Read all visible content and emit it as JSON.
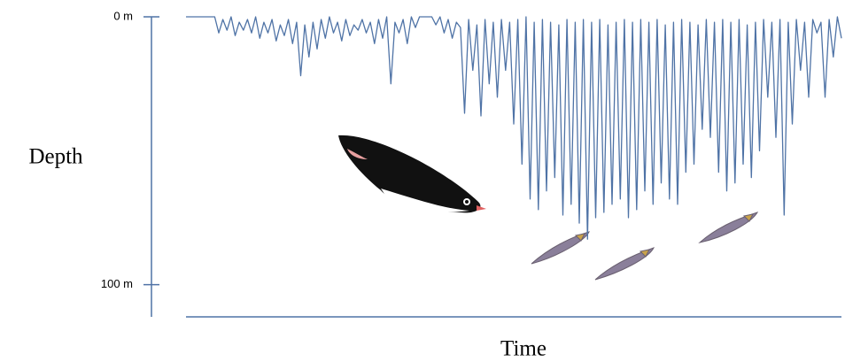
{
  "chart_data": {
    "type": "line",
    "y_label": "Depth",
    "x_label": "Time",
    "ylim": [
      0,
      112
    ],
    "y_inverted": true,
    "yticks": [
      {
        "value": 0,
        "label": "0 m"
      },
      {
        "value": 100,
        "label": "100 m"
      }
    ],
    "color": "#4f73a6",
    "values": [
      0,
      0,
      0,
      0,
      0,
      0,
      0,
      0,
      6,
      1,
      5,
      0,
      7,
      2,
      5,
      1,
      6,
      0,
      8,
      2,
      6,
      1,
      9,
      3,
      7,
      1,
      10,
      2,
      22,
      3,
      15,
      2,
      12,
      1,
      8,
      0,
      6,
      2,
      9,
      1,
      7,
      3,
      5,
      1,
      6,
      2,
      10,
      1,
      8,
      0,
      25,
      2,
      6,
      1,
      10,
      0,
      4,
      0,
      0,
      0,
      0,
      3,
      0,
      6,
      1,
      8,
      2,
      4,
      36,
      1,
      20,
      3,
      37,
      1,
      25,
      2,
      30,
      1,
      20,
      2,
      40,
      1,
      55,
      0,
      68,
      2,
      72,
      1,
      65,
      2,
      60,
      3,
      74,
      1,
      70,
      2,
      77,
      1,
      83,
      2,
      75,
      1,
      73,
      3,
      70,
      2,
      68,
      1,
      75,
      2,
      72,
      1,
      65,
      2,
      70,
      1,
      62,
      3,
      68,
      2,
      70,
      1,
      58,
      2,
      55,
      3,
      42,
      1,
      45,
      2,
      58,
      1,
      65,
      2,
      62,
      1,
      55,
      3,
      60,
      2,
      50,
      1,
      30,
      2,
      45,
      1,
      74,
      2,
      40,
      1,
      20,
      2,
      30,
      1,
      6,
      2,
      30,
      1,
      15,
      0,
      8
    ]
  }
}
